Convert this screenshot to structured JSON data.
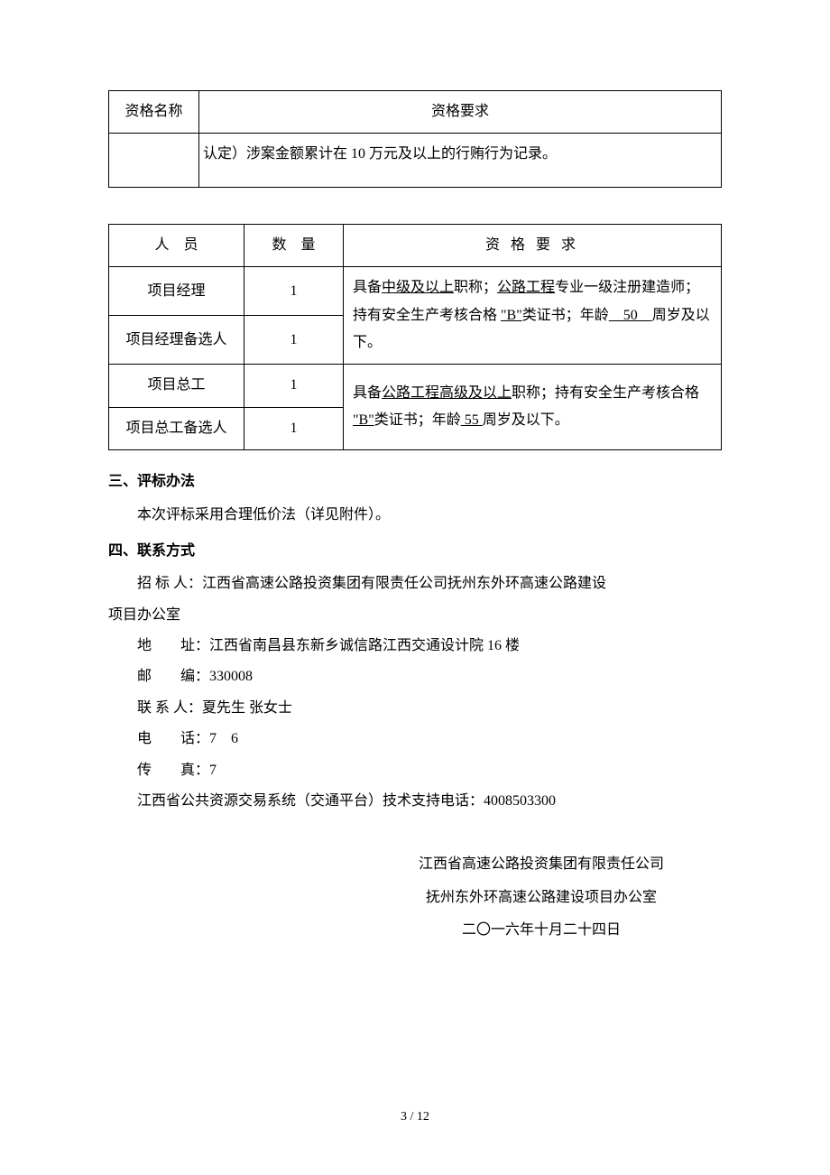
{
  "table1": {
    "header_col1": "资格名称",
    "header_col2": "资格要求",
    "row_col1": "",
    "row_col2": "认定）涉案金额累计在 10 万元及以上的行贿行为记录。"
  },
  "table2": {
    "header_col1": "人　员",
    "header_col2": "数　量",
    "header_col3": "资 格 要 求",
    "rows": [
      {
        "role": "项目经理",
        "count": "1"
      },
      {
        "role": "项目经理备选人",
        "count": "1"
      },
      {
        "role": "项目总工",
        "count": "1"
      },
      {
        "role": "项目总工备选人",
        "count": "1"
      }
    ],
    "req1_part1": "具备",
    "req1_underline1": "中级及以上",
    "req1_part2": "职称；",
    "req1_underline2": "公路工程",
    "req1_part3": "专业一级注册建造师；持有安全生产考核合格 ",
    "req1_underline3": "\"B\"",
    "req1_part4": "类证书；年龄",
    "req1_underline4": "　50　",
    "req1_part5": "周岁及以下。",
    "req2_part1": "具备",
    "req2_underline1": "公路工程高级及以上",
    "req2_part2": "职称；持有安全生产考核合格 ",
    "req2_underline2": "\"B\"",
    "req2_part3": "类证书；年龄",
    "req2_underline3": " 55 ",
    "req2_part4": "周岁及以下。"
  },
  "sections": {
    "heading3": "三、评标办法",
    "body3": "本次评标采用合理低价法（详见附件）。",
    "heading4": "四、联系方式",
    "bidder_label": "招 标 人：",
    "bidder_value": "江西省高速公路投资集团有限责任公司抚州东外环高速公路建设",
    "bidder_line2": "项目办公室",
    "address_label": "地　　址：",
    "address_value": "江西省南昌县东新乡诚信路江西交通设计院 16 楼",
    "postcode_label": "邮　　编：",
    "postcode_value": "330008",
    "contact_label": "联 系 人：",
    "contact_value": "夏先生 张女士",
    "phone_label": "电　　话：",
    "phone_value": "7　6",
    "fax_label": "传　　真：",
    "fax_value": "7",
    "support_line": "江西省公共资源交易系统（交通平台）技术支持电话：4008503300"
  },
  "signature": {
    "line1": "江西省高速公路投资集团有限责任公司",
    "line2": "抚州东外环高速公路建设项目办公室",
    "line3": "二〇一六年十月二十四日"
  },
  "page_number": "3 / 12"
}
